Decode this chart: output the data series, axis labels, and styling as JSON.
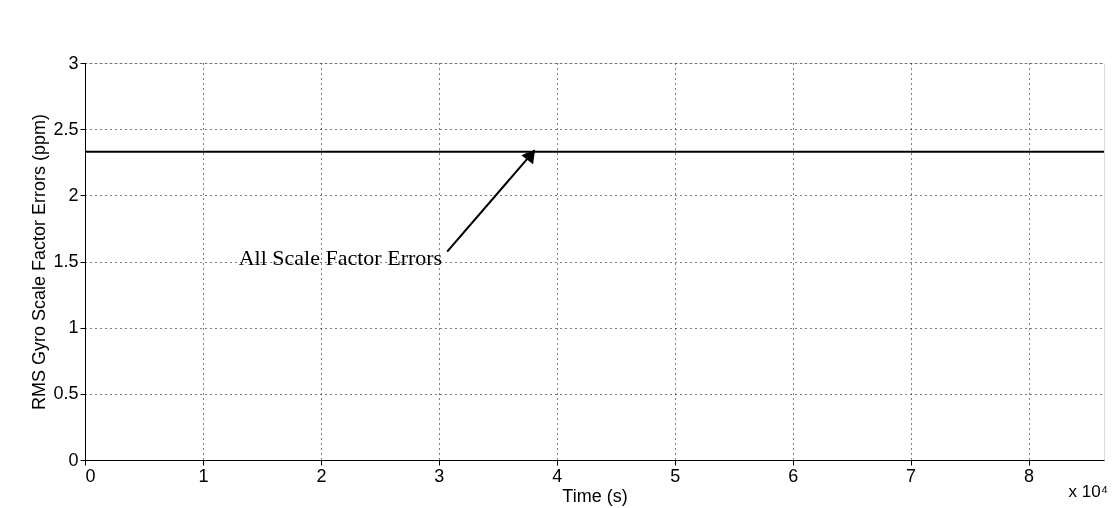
{
  "chart_data": {
    "type": "line",
    "xlabel": "Time (s)",
    "ylabel": "RMS Gyro Scale Factor Errors (ppm)",
    "x": [
      0,
      8.64
    ],
    "series": [
      {
        "color": "#000000",
        "values": [
          2.33,
          2.33
        ]
      }
    ],
    "xlim": [
      0,
      8.64
    ],
    "xticks": [
      0,
      1,
      2,
      3,
      4,
      5,
      6,
      7,
      8
    ],
    "ylim": [
      0,
      3
    ],
    "yticks": [
      0,
      0.5,
      1,
      1.5,
      2,
      2.5,
      3
    ],
    "grid": true,
    "line_style": "solid",
    "marker": "none",
    "annotations": [
      {
        "text": "All Scale Factor Errors",
        "x": 3.8,
        "y": 2.33
      },
      "x 10⁴"
    ]
  }
}
